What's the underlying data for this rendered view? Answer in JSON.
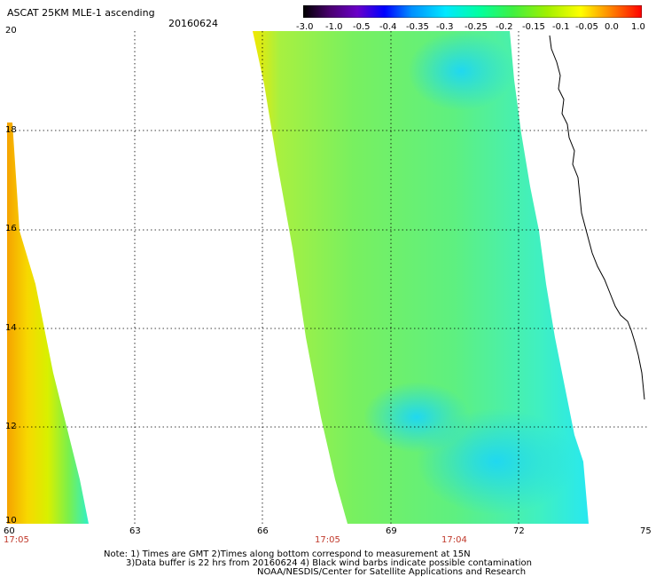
{
  "header": {
    "title": "ASCAT 25KM MLE-1 ascending",
    "date": "20160624"
  },
  "colorbar": {
    "labels": [
      "-3.0",
      "-1.0",
      "-0.5",
      "-0.4",
      "-0.35",
      "-0.3",
      "-0.25",
      "-0.2",
      "-0.15",
      "-0.1",
      "-0.05",
      "0.0",
      "1.0"
    ]
  },
  "axes": {
    "x_ticks": [
      "60",
      "63",
      "66",
      "69",
      "72",
      "75"
    ],
    "y_ticks": [
      "20",
      "18",
      "16",
      "14",
      "12",
      "10"
    ]
  },
  "pass_times": [
    "17:05",
    "17:05",
    "17:04"
  ],
  "notes": {
    "line1": "Note: 1) Times are GMT 2)Times along bottom correspond to measurement at 15N",
    "line2": "3)Data buffer is 22 hrs from 20160624 4) Black wind barbs indicate possible contamination",
    "line3": "NOAA/NESDIS/Center for Satellite Applications and Research"
  },
  "colors": {
    "swath_main": "#7CFC4A",
    "swath_cyan": "#2FF5E8",
    "swath_yellow": "#F4F200",
    "swath_orange": "#F7A000",
    "grid": "#000000",
    "time_label": "#c0392b"
  }
}
